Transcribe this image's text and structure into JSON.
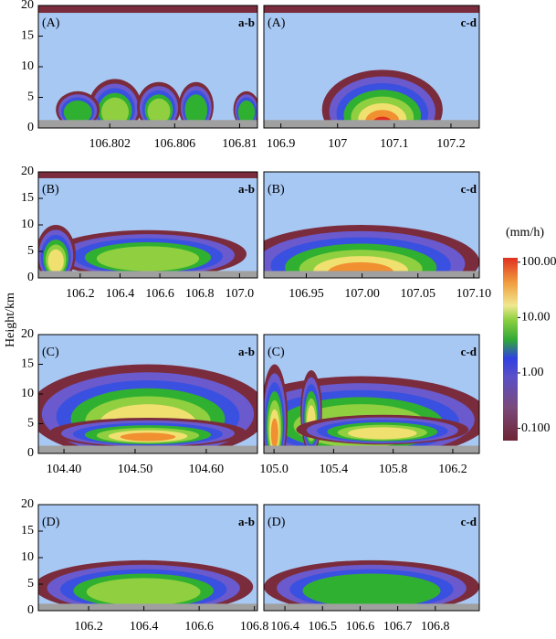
{
  "y_label": "Height/km",
  "chart_data": [
    {
      "type": "heatmap",
      "label": "(A)",
      "corner": "a-b",
      "xlim": [
        106.7976,
        106.8111
      ],
      "xticks": [
        106.802,
        106.806,
        106.81
      ],
      "ylim": [
        0,
        20
      ],
      "yticks": [
        0,
        5,
        10,
        15,
        20
      ]
    },
    {
      "type": "heatmap",
      "label": "(A)",
      "corner": "c-d",
      "xlim": [
        106.87,
        107.25
      ],
      "xticks": [
        106.9,
        107,
        107.1,
        107.2
      ],
      "ylim": [
        0,
        20
      ]
    },
    {
      "type": "heatmap",
      "label": "(B)",
      "corner": "a-b",
      "xlim": [
        105.99,
        107.09
      ],
      "xticks": [
        106.2,
        106.4,
        106.6,
        106.8,
        {
          "value": 107,
          "label": "107.0"
        }
      ],
      "ylim": [
        0,
        20
      ],
      "yticks": [
        0,
        5,
        10,
        15,
        20
      ]
    },
    {
      "type": "heatmap",
      "label": "(B)",
      "corner": "c-d",
      "xlim": [
        106.912,
        107.105
      ],
      "xticks": [
        106.95,
        {
          "value": 107,
          "label": "107.00"
        },
        107.05,
        {
          "value": 107.1,
          "label": "107.10"
        }
      ],
      "ylim": [
        0,
        20
      ]
    },
    {
      "type": "heatmap",
      "label": "(C)",
      "corner": "a-b",
      "xlim": [
        104.364,
        104.672
      ],
      "xticks": [
        {
          "value": 104.4,
          "label": "104.40"
        },
        {
          "value": 104.5,
          "label": "104.50"
        },
        {
          "value": 104.6,
          "label": "104.60"
        }
      ],
      "ylim": [
        0,
        20
      ],
      "yticks": [
        0,
        5,
        10,
        15,
        20
      ]
    },
    {
      "type": "heatmap",
      "label": "(C)",
      "corner": "c-d",
      "xlim": [
        104.932,
        106.378
      ],
      "xticks": [
        {
          "value": 105,
          "label": "105.0"
        },
        105.4,
        105.8,
        106.2
      ],
      "ylim": [
        0,
        20
      ]
    },
    {
      "type": "heatmap",
      "label": "(D)",
      "corner": "a-b",
      "xlim": [
        106.018,
        106.811
      ],
      "xticks": [
        106.2,
        106.4,
        106.6,
        106.8
      ],
      "ylim": [
        0,
        20
      ],
      "yticks": [
        0,
        5,
        10,
        15,
        20
      ]
    },
    {
      "type": "heatmap",
      "label": "(D)",
      "corner": "c-d",
      "xlim": [
        106.344,
        106.917
      ],
      "xticks": [
        106.4,
        106.5,
        106.6,
        106.7,
        106.8
      ],
      "ylim": [
        0,
        20
      ]
    },
    {
      "type": "colorbar",
      "title": "(mm/h)",
      "log_scale": true,
      "ylim": [
        0.06,
        120
      ],
      "yticks": [
        {
          "value": 100,
          "label": "100.00"
        },
        {
          "value": 10,
          "label": "10.00"
        },
        {
          "value": 1,
          "label": "1.00"
        },
        {
          "value": 0.1,
          "label": "0.100"
        }
      ]
    }
  ]
}
